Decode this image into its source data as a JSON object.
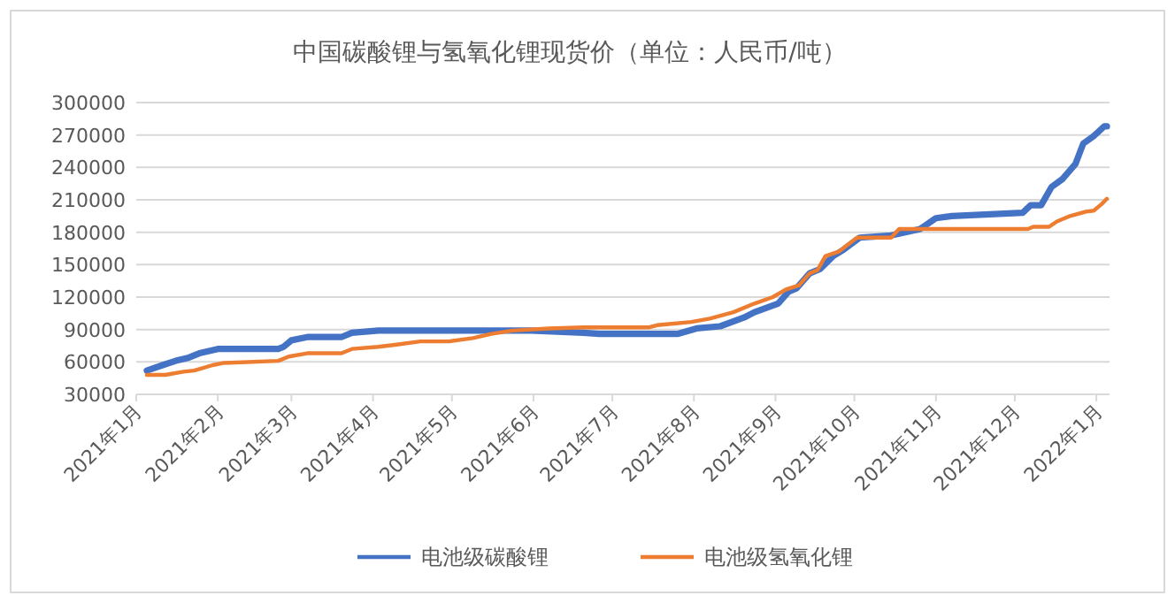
{
  "chart_data": {
    "type": "line",
    "title": "中国碳酸锂与氢氧化锂现货价（单位：人民币/吨）",
    "ylim": [
      30000,
      300000
    ],
    "yticks": [
      30000,
      60000,
      90000,
      120000,
      150000,
      180000,
      210000,
      240000,
      270000,
      300000
    ],
    "xlim": [
      "2021-01-01",
      "2022-01-06"
    ],
    "xticks": [
      {
        "value": "2021-01-01",
        "label": "2021年1月"
      },
      {
        "value": "2021-02-01",
        "label": "2021年2月"
      },
      {
        "value": "2021-03-01",
        "label": "2021年3月"
      },
      {
        "value": "2021-04-01",
        "label": "2021年4月"
      },
      {
        "value": "2021-05-01",
        "label": "2021年5月"
      },
      {
        "value": "2021-06-01",
        "label": "2021年6月"
      },
      {
        "value": "2021-07-01",
        "label": "2021年7月"
      },
      {
        "value": "2021-08-01",
        "label": "2021年8月"
      },
      {
        "value": "2021-09-01",
        "label": "2021年9月"
      },
      {
        "value": "2021-10-01",
        "label": "2021年10月"
      },
      {
        "value": "2021-11-01",
        "label": "2021年11月"
      },
      {
        "value": "2021-12-01",
        "label": "2021年12月"
      },
      {
        "value": "2022-01-01",
        "label": "2022年1月"
      }
    ],
    "grid": "y",
    "legend": "bottom",
    "marker": "none",
    "line_style": "solid",
    "series": [
      {
        "name": "电池级碳酸锂",
        "color": "#4472c4",
        "x": [
          "2021-01-05",
          "2021-01-11",
          "2021-01-16",
          "2021-01-21",
          "2021-01-25",
          "2021-02-01",
          "2021-02-24",
          "2021-02-26",
          "2021-03-01",
          "2021-03-07",
          "2021-03-20",
          "2021-03-24",
          "2021-04-03",
          "2021-05-31",
          "2021-06-20",
          "2021-06-26",
          "2021-07-26",
          "2021-08-02",
          "2021-08-11",
          "2021-08-20",
          "2021-08-24",
          "2021-09-02",
          "2021-09-06",
          "2021-09-09",
          "2021-09-14",
          "2021-09-18",
          "2021-09-23",
          "2021-09-27",
          "2021-10-03",
          "2021-10-15",
          "2021-10-26",
          "2021-11-01",
          "2021-11-07",
          "2021-12-04",
          "2021-12-07",
          "2021-12-11",
          "2021-12-15",
          "2021-12-19",
          "2021-12-24",
          "2021-12-27",
          "2021-12-31",
          "2022-01-04",
          "2022-01-05"
        ],
        "values": [
          52000,
          57000,
          61000,
          64000,
          68000,
          72000,
          72000,
          74000,
          80000,
          83000,
          83000,
          87000,
          89000,
          89000,
          87000,
          86000,
          86000,
          91000,
          93000,
          101000,
          106000,
          114000,
          125000,
          128000,
          142000,
          146000,
          158000,
          164000,
          175000,
          177000,
          183000,
          193000,
          195000,
          198000,
          205000,
          205000,
          222000,
          229000,
          243000,
          262000,
          269000,
          278000,
          278000
        ]
      },
      {
        "name": "电池级氢氧化锂",
        "color": "#ed7d31",
        "x": [
          "2021-01-05",
          "2021-01-12",
          "2021-01-19",
          "2021-01-23",
          "2021-01-30",
          "2021-02-03",
          "2021-02-24",
          "2021-02-28",
          "2021-03-07",
          "2021-03-20",
          "2021-03-24",
          "2021-04-03",
          "2021-04-10",
          "2021-04-19",
          "2021-04-30",
          "2021-05-09",
          "2021-05-16",
          "2021-05-24",
          "2021-06-07",
          "2021-06-20",
          "2021-07-15",
          "2021-07-18",
          "2021-07-31",
          "2021-08-07",
          "2021-08-16",
          "2021-08-24",
          "2021-08-31",
          "2021-09-05",
          "2021-09-10",
          "2021-09-14",
          "2021-09-17",
          "2021-09-20",
          "2021-09-25",
          "2021-10-02",
          "2021-10-15",
          "2021-10-18",
          "2021-12-06",
          "2021-12-08",
          "2021-12-14",
          "2021-12-17",
          "2021-12-22",
          "2021-12-28",
          "2021-12-31",
          "2022-01-03",
          "2022-01-05"
        ],
        "values": [
          48000,
          48000,
          51000,
          52000,
          57000,
          59000,
          61000,
          65000,
          68000,
          68000,
          72000,
          74000,
          76000,
          79000,
          79000,
          82000,
          86000,
          89000,
          91000,
          92000,
          92000,
          94000,
          97000,
          100000,
          106000,
          114000,
          120000,
          127000,
          131000,
          142000,
          145000,
          158000,
          162000,
          175000,
          175000,
          183000,
          183000,
          185000,
          185000,
          190000,
          195000,
          199000,
          200000,
          206000,
          211000
        ]
      }
    ]
  }
}
